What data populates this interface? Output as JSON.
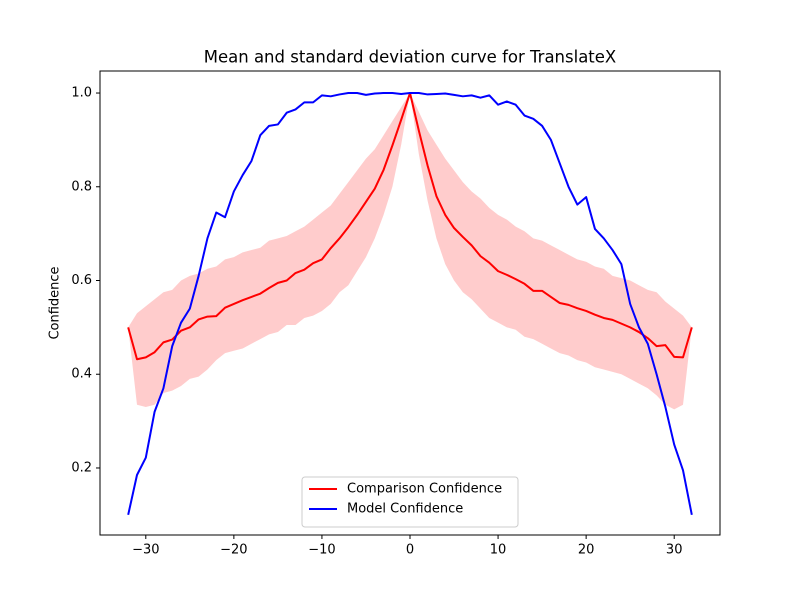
{
  "chart_data": {
    "type": "line",
    "title": "Mean and standard deviation curve for TranslateX",
    "ylabel": "Confidence",
    "x": [
      -32,
      -31,
      -30,
      -29,
      -28,
      -27,
      -26,
      -25,
      -24,
      -23,
      -22,
      -21,
      -20,
      -19,
      -18,
      -17,
      -16,
      -15,
      -14,
      -13,
      -12,
      -11,
      -10,
      -9,
      -8,
      -7,
      -6,
      -5,
      -4,
      -3,
      -2,
      -1,
      0,
      1,
      2,
      3,
      4,
      5,
      6,
      7,
      8,
      9,
      10,
      11,
      12,
      13,
      14,
      15,
      16,
      17,
      18,
      19,
      20,
      21,
      22,
      23,
      24,
      25,
      26,
      27,
      28,
      29,
      30,
      31,
      32
    ],
    "series": [
      {
        "name": "Comparison Confidence",
        "color": "#ff0000",
        "band_color": "#ffcccc",
        "values": [
          0.5,
          0.432,
          0.436,
          0.447,
          0.468,
          0.474,
          0.493,
          0.5,
          0.517,
          0.523,
          0.524,
          0.542,
          0.55,
          0.558,
          0.565,
          0.572,
          0.584,
          0.595,
          0.6,
          0.616,
          0.623,
          0.637,
          0.645,
          0.669,
          0.69,
          0.714,
          0.74,
          0.768,
          0.796,
          0.836,
          0.888,
          0.943,
          1.0,
          0.92,
          0.845,
          0.78,
          0.74,
          0.712,
          0.693,
          0.675,
          0.652,
          0.638,
          0.62,
          0.612,
          0.603,
          0.593,
          0.578,
          0.578,
          0.565,
          0.552,
          0.548,
          0.541,
          0.535,
          0.527,
          0.52,
          0.516,
          0.508,
          0.5,
          0.49,
          0.477,
          0.46,
          0.462,
          0.437,
          0.436,
          0.5
        ],
        "lower": [
          0.5,
          0.335,
          0.33,
          0.335,
          0.36,
          0.365,
          0.375,
          0.39,
          0.395,
          0.41,
          0.43,
          0.445,
          0.45,
          0.455,
          0.465,
          0.475,
          0.485,
          0.49,
          0.505,
          0.505,
          0.52,
          0.525,
          0.535,
          0.55,
          0.575,
          0.59,
          0.62,
          0.65,
          0.69,
          0.74,
          0.8,
          0.89,
          1.0,
          0.87,
          0.77,
          0.69,
          0.635,
          0.6,
          0.575,
          0.56,
          0.54,
          0.52,
          0.51,
          0.5,
          0.495,
          0.48,
          0.475,
          0.465,
          0.455,
          0.445,
          0.44,
          0.43,
          0.425,
          0.415,
          0.41,
          0.405,
          0.4,
          0.39,
          0.38,
          0.37,
          0.355,
          0.335,
          0.325,
          0.335,
          0.5
        ],
        "upper": [
          0.5,
          0.53,
          0.545,
          0.56,
          0.575,
          0.58,
          0.6,
          0.61,
          0.615,
          0.625,
          0.63,
          0.645,
          0.65,
          0.66,
          0.665,
          0.67,
          0.685,
          0.69,
          0.695,
          0.705,
          0.715,
          0.73,
          0.745,
          0.76,
          0.785,
          0.81,
          0.835,
          0.86,
          0.88,
          0.91,
          0.94,
          0.97,
          1.0,
          0.96,
          0.92,
          0.89,
          0.86,
          0.835,
          0.81,
          0.79,
          0.775,
          0.755,
          0.74,
          0.73,
          0.715,
          0.705,
          0.69,
          0.685,
          0.675,
          0.665,
          0.655,
          0.645,
          0.64,
          0.63,
          0.625,
          0.61,
          0.605,
          0.6,
          0.59,
          0.58,
          0.575,
          0.555,
          0.54,
          0.525,
          0.5
        ]
      },
      {
        "name": "Model Confidence",
        "color": "#0000ff",
        "values": [
          0.1,
          0.185,
          0.222,
          0.32,
          0.37,
          0.46,
          0.51,
          0.54,
          0.61,
          0.69,
          0.745,
          0.735,
          0.79,
          0.825,
          0.855,
          0.91,
          0.93,
          0.933,
          0.958,
          0.965,
          0.98,
          0.98,
          0.995,
          0.993,
          0.997,
          1.0,
          1.0,
          0.996,
          0.999,
          1.0,
          1.0,
          0.998,
          1.0,
          1.0,
          0.997,
          0.998,
          0.999,
          0.996,
          0.993,
          0.995,
          0.99,
          0.995,
          0.975,
          0.982,
          0.975,
          0.952,
          0.945,
          0.93,
          0.9,
          0.85,
          0.8,
          0.762,
          0.778,
          0.71,
          0.69,
          0.665,
          0.635,
          0.55,
          0.5,
          0.465,
          0.4,
          0.33,
          0.25,
          0.195,
          0.1
        ]
      }
    ],
    "xlim": [
      -35.2,
      35.2
    ],
    "ylim": [
      0.057,
      1.047
    ],
    "xticks": [
      {
        "value": -30,
        "label": "−30"
      },
      {
        "value": -20,
        "label": "−20"
      },
      {
        "value": -10,
        "label": "−10"
      },
      0,
      10,
      20,
      30
    ],
    "yticks": [
      0.2,
      0.4,
      0.6,
      0.8,
      {
        "value": 1,
        "label": "1.0"
      }
    ],
    "legend": "lower center"
  }
}
